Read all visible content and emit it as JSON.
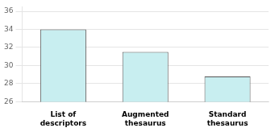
{
  "chart_data": {
    "type": "bar",
    "categories": [
      "List of\ndescriptors",
      "Augmented\nthesaurus",
      "Standard\nthesaurus"
    ],
    "values": [
      34.0,
      31.5,
      28.8
    ],
    "color": "#c8eef0",
    "ylim": [
      26,
      36.5
    ],
    "yticks": [
      26,
      28,
      30,
      32,
      34,
      36
    ],
    "grid": true
  }
}
